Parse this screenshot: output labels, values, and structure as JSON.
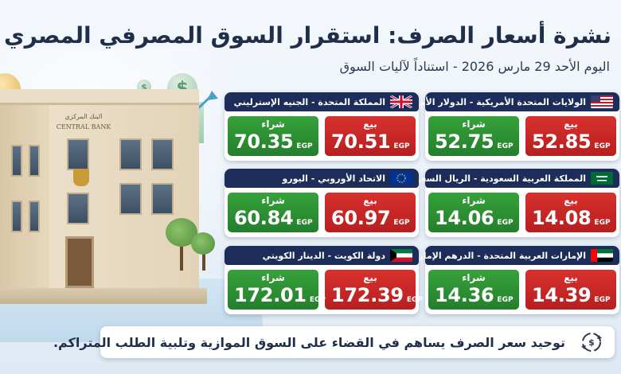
{
  "header": {
    "title": "نشرة أسعار الصرف: استقرار السوق المصرفي المصري",
    "subtitle": "اليوم الأحد 29 مارس 2026 - استناداً لآليات السوق"
  },
  "building": {
    "sign_line1": "البنك المركزي",
    "sign_line2": "CENTRAL BANK"
  },
  "labels": {
    "sell": "بيع",
    "buy": "شراء",
    "currency": "EGP"
  },
  "cards": [
    {
      "title": "الولايات المتحدة الأمريكية - الدولار الأمريكي",
      "flag": "usa-flag-icon",
      "sell": "52.85",
      "buy": "52.75"
    },
    {
      "title": "المملكة المتحدة - الجنيه الإسترليني",
      "flag": "uk-flag-icon",
      "sell": "70.51",
      "buy": "70.35"
    },
    {
      "title": "المملكة العربية السعودية - الريال السعودي",
      "flag": "saudi-flag-icon",
      "sell": "14.08",
      "buy": "14.06"
    },
    {
      "title": "الاتحاد الأوروبي - اليورو",
      "flag": "eu-flag-icon",
      "sell": "60.97",
      "buy": "60.84"
    },
    {
      "title": "الإمارات العربية المتحدة - الدرهم الإماراتي",
      "flag": "uae-flag-icon",
      "sell": "14.39",
      "buy": "14.36"
    },
    {
      "title": "دولة الكويت - الدينار الكويتي",
      "flag": "kuwait-flag-icon",
      "sell": "172.39",
      "buy": "172.01"
    }
  ],
  "footer": {
    "text": "توحيد سعر الصرف يساهم في القضاء على السوق الموازية وتلبية الطلب المتراكم.",
    "icon": "currency-exchange-icon"
  },
  "colors": {
    "header_bg": "#1c2d5a",
    "sell": "#c8272a",
    "buy": "#2e9235",
    "title_text": "#1f2f4a"
  }
}
